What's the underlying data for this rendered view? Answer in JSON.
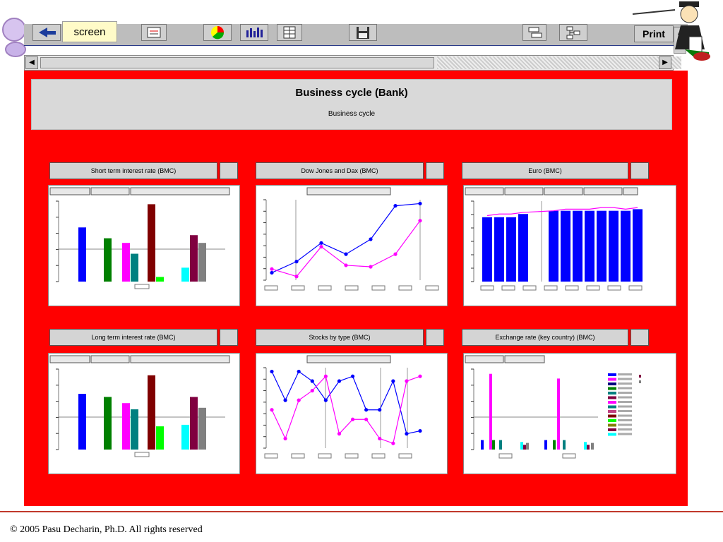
{
  "toolbar": {
    "previous_screen_label": "screen",
    "print_label": "Print"
  },
  "header": {
    "title": "Business cycle (Bank)",
    "subtitle": "Business cycle"
  },
  "charts": {
    "c1": {
      "title": "Short term interest rate (BMC)"
    },
    "c2": {
      "title": "Dow Jones and Dax (BMC)"
    },
    "c3": {
      "title": "Euro (BMC)"
    },
    "c4": {
      "title": "Long term interest rate (BMC)"
    },
    "c5": {
      "title": "Stocks by type (BMC)"
    },
    "c6": {
      "title": "Exchange rate (key country) (BMC)"
    }
  },
  "footer": {
    "copyright": "© 2005 Pasu Decharin, Ph.D. All rights reserved"
  },
  "colors": {
    "background": "#ff0000",
    "panel": "#d9d9d9"
  },
  "chart_data": [
    {
      "type": "bar",
      "title": "Short term interest rate (BMC)",
      "series": [
        {
          "color": "#0000ff",
          "value": 3.5
        },
        {
          "color": "#008000",
          "value": 2.8
        },
        {
          "color": "#ff00ff",
          "value": 2.5
        },
        {
          "color": "#008080",
          "value": 1.8
        },
        {
          "color": "#800000",
          "value": 5.0
        },
        {
          "color": "#00ff00",
          "value": 0.3
        },
        {
          "color": "#00ffff",
          "value": 0.9
        },
        {
          "color": "#800040",
          "value": 3.0
        },
        {
          "color": "#808080",
          "value": 2.5
        }
      ]
    },
    {
      "type": "line",
      "title": "Dow Jones and Dax (BMC)",
      "series": [
        {
          "color": "#0000ff",
          "values": [
            1,
            2.5,
            5,
            3.5,
            5.5,
            10,
            10.3
          ]
        },
        {
          "color": "#ff00ff",
          "values": [
            1.5,
            0.5,
            4.5,
            2,
            1.8,
            3.5,
            8
          ]
        }
      ]
    },
    {
      "type": "bar",
      "title": "Euro (BMC)",
      "values": [
        0.9,
        0.9,
        0.9,
        0.92,
        0.94,
        0.94,
        0.94,
        0.94,
        0.94,
        0.94,
        0.94,
        0.95
      ],
      "line": [
        0.91,
        0.92,
        0.92,
        0.93,
        0.94,
        0.95,
        0.95,
        0.95,
        0.96,
        0.96,
        0.95,
        0.96
      ]
    },
    {
      "type": "bar",
      "title": "Long term interest rate (BMC)",
      "series": [
        {
          "color": "#0000ff",
          "value": 3.6
        },
        {
          "color": "#008000",
          "value": 3.4
        },
        {
          "color": "#ff00ff",
          "value": 3.0
        },
        {
          "color": "#008080",
          "value": 2.6
        },
        {
          "color": "#800000",
          "value": 4.8
        },
        {
          "color": "#00ff00",
          "value": 1.5
        },
        {
          "color": "#00ffff",
          "value": 1.6
        },
        {
          "color": "#800040",
          "value": 3.4
        },
        {
          "color": "#808080",
          "value": 2.7
        }
      ]
    },
    {
      "type": "line",
      "title": "Stocks by type (BMC)",
      "series": [
        {
          "color": "#0000ff",
          "values": [
            8,
            5,
            8,
            7,
            5,
            7,
            7.5,
            4,
            4,
            7,
            1.5,
            1.8
          ]
        },
        {
          "color": "#ff00ff",
          "values": [
            4,
            1,
            5,
            6,
            7.5,
            1.5,
            3,
            3,
            1,
            0.5,
            7,
            7.5
          ]
        }
      ]
    },
    {
      "type": "bar",
      "title": "Exchange rate (key country) (BMC)",
      "groups": [
        [
          {
            "color": "#0000ff",
            "value": 1
          },
          {
            "color": "#ff00ff",
            "value": 8
          },
          {
            "color": "#008000",
            "value": 1
          },
          {
            "color": "#008080",
            "value": 1
          },
          {
            "color": "#00ffff",
            "value": 0.8
          },
          {
            "color": "#800040",
            "value": 0.5
          },
          {
            "color": "#808080",
            "value": 0.7
          }
        ],
        [
          {
            "color": "#0000ff",
            "value": 1
          },
          {
            "color": "#ff00ff",
            "value": 7.5
          },
          {
            "color": "#008000",
            "value": 1
          },
          {
            "color": "#008080",
            "value": 1
          },
          {
            "color": "#00ffff",
            "value": 0.8
          },
          {
            "color": "#800040",
            "value": 0.5
          },
          {
            "color": "#808080",
            "value": 0.7
          }
        ]
      ],
      "legend_colors": [
        "#0000ff",
        "#ff00ff",
        "#000080",
        "#008000",
        "#008080",
        "#800040",
        "#ff00ff",
        "#008080",
        "#c04080",
        "#800000",
        "#00ff00",
        "#808000",
        "#800040",
        "#00ffff"
      ]
    }
  ]
}
